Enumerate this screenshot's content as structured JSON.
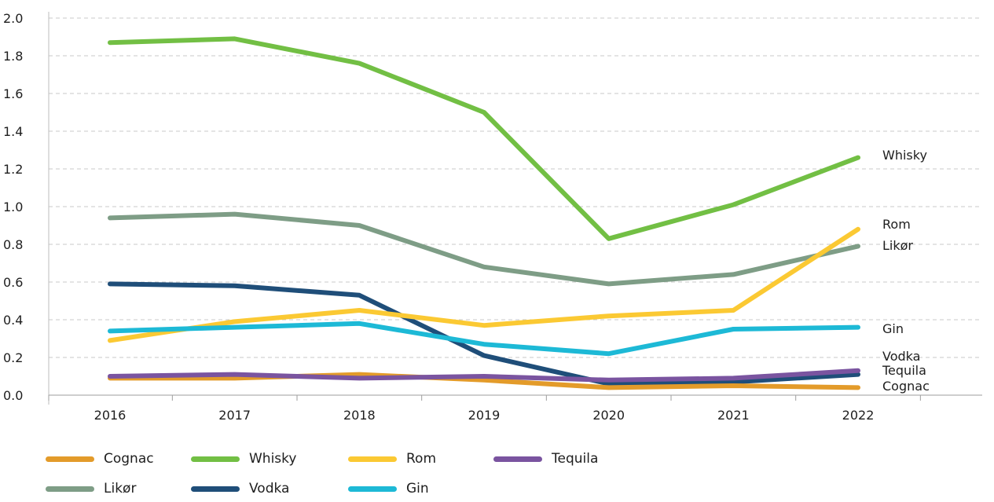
{
  "chart_data": {
    "type": "line",
    "categories": [
      "2016",
      "2017",
      "2018",
      "2019",
      "2020",
      "2021",
      "2022"
    ],
    "ylim": [
      0,
      2.0
    ],
    "yticks": [
      "0.0",
      "0.2",
      "0.4",
      "0.6",
      "0.8",
      "1.0",
      "1.2",
      "1.4",
      "1.6",
      "1.8",
      "2.0"
    ],
    "grid": true,
    "legend_position": "bottom",
    "series": [
      {
        "name": "Cognac",
        "color": "#e39b2a",
        "values": [
          0.09,
          0.09,
          0.11,
          0.08,
          0.04,
          0.05,
          0.04
        ]
      },
      {
        "name": "Whisky",
        "color": "#72bf44",
        "values": [
          1.87,
          1.89,
          1.76,
          1.5,
          0.83,
          1.01,
          1.26
        ]
      },
      {
        "name": "Rom",
        "color": "#fbc933",
        "values": [
          0.29,
          0.39,
          0.45,
          0.37,
          0.42,
          0.45,
          0.88
        ]
      },
      {
        "name": "Tequila",
        "color": "#7a54a0",
        "values": [
          0.1,
          0.11,
          0.09,
          0.1,
          0.08,
          0.09,
          0.13
        ]
      },
      {
        "name": "Likør",
        "color": "#7e9d86",
        "values": [
          0.94,
          0.96,
          0.9,
          0.68,
          0.59,
          0.64,
          0.79
        ]
      },
      {
        "name": "Vodka",
        "color": "#1f4e79",
        "values": [
          0.59,
          0.58,
          0.53,
          0.21,
          0.06,
          0.07,
          0.11
        ]
      },
      {
        "name": "Gin",
        "color": "#1db9d6",
        "values": [
          0.34,
          0.36,
          0.38,
          0.27,
          0.22,
          0.35,
          0.36
        ]
      }
    ],
    "end_labels": [
      "Whisky",
      "Rom",
      "Likør",
      "Gin",
      "Vodka",
      "Tequila",
      "Cognac"
    ],
    "legend": [
      "Cognac",
      "Whisky",
      "Rom",
      "Tequila",
      "Likør",
      "Vodka",
      "Gin"
    ]
  }
}
